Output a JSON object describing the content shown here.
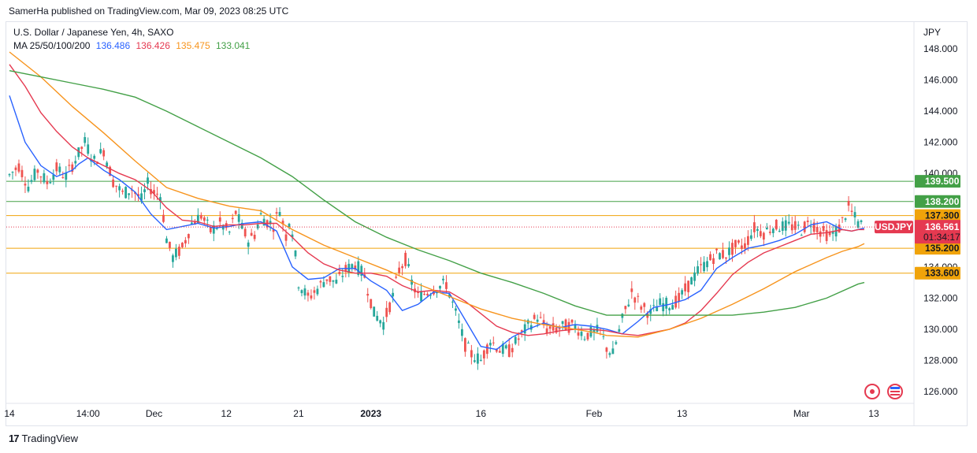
{
  "publisher_line": "SamerHa published on TradingView.com, Mar 09, 2023 08:25 UTC",
  "footer": {
    "brand": "TradingView",
    "mark": "17"
  },
  "chart_data": {
    "type": "line",
    "title": "U.S. Dollar / Japanese Yen, 4h, SAXO",
    "currency": "JPY",
    "symbol": "USDJPY",
    "last_price": "136.561",
    "countdown": "01:34:17",
    "ma_label": "MA 25/50/100/200",
    "ylim": [
      125.0,
      148.5
    ],
    "y_ticks": [
      "148.000",
      "146.000",
      "144.000",
      "142.000",
      "140.000",
      "138.000",
      "136.000",
      "134.000",
      "132.000",
      "130.000",
      "128.000",
      "126.000"
    ],
    "x_ticks": [
      "14",
      "14:00",
      "Dec",
      "12",
      "21",
      "2023",
      "16",
      "Feb",
      "13",
      "Mar",
      "13"
    ],
    "x_tick_index": [
      0,
      25,
      46,
      69,
      92,
      115,
      150,
      186,
      214,
      252,
      275
    ],
    "bar_count": 272,
    "levels": [
      {
        "value": 139.5,
        "label": "139.500",
        "color": "#43a047"
      },
      {
        "value": 138.2,
        "label": "138.200",
        "color": "#43a047"
      },
      {
        "value": 137.3,
        "label": "137.300",
        "color": "#f0a30a"
      },
      {
        "value": 135.2,
        "label": "135.200",
        "color": "#f0a30a"
      },
      {
        "value": 133.6,
        "label": "133.600",
        "color": "#f0a30a"
      }
    ],
    "series": [
      {
        "name": "MA 25",
        "value": "136.486",
        "color": "#2962ff",
        "x": [
          0,
          5,
          10,
          15,
          20,
          22,
          25,
          30,
          35,
          40,
          45,
          50,
          55,
          60,
          65,
          70,
          75,
          80,
          85,
          90,
          95,
          100,
          105,
          110,
          115,
          120,
          125,
          130,
          135,
          140,
          145,
          150,
          155,
          160,
          165,
          170,
          175,
          180,
          185,
          190,
          195,
          200,
          205,
          210,
          215,
          220,
          225,
          230,
          235,
          240,
          245,
          250,
          255,
          260,
          265,
          268,
          270,
          272
        ],
        "y": [
          145.0,
          142.0,
          140.5,
          139.8,
          140.2,
          140.6,
          141.0,
          140.2,
          139.6,
          138.8,
          137.4,
          136.4,
          136.6,
          136.8,
          136.5,
          136.6,
          136.8,
          136.9,
          136.3,
          134.0,
          133.2,
          133.3,
          133.9,
          133.9,
          133.1,
          132.5,
          131.2,
          131.6,
          132.4,
          132.3,
          130.6,
          128.9,
          128.7,
          129.5,
          130.0,
          130.4,
          130.1,
          130.3,
          130.2,
          130.0,
          129.7,
          130.5,
          131.4,
          131.6,
          131.9,
          132.5,
          133.9,
          134.6,
          135.2,
          135.4,
          135.7,
          136.1,
          136.7,
          136.9,
          136.4,
          136.3,
          136.4,
          136.5
        ]
      },
      {
        "name": "MA 50",
        "value": "136.426",
        "color": "#e53950",
        "x": [
          0,
          5,
          10,
          15,
          20,
          25,
          30,
          35,
          40,
          45,
          50,
          55,
          60,
          65,
          70,
          75,
          80,
          85,
          90,
          95,
          100,
          105,
          110,
          115,
          120,
          125,
          130,
          135,
          140,
          145,
          150,
          155,
          160,
          165,
          170,
          175,
          180,
          185,
          190,
          195,
          200,
          205,
          210,
          215,
          220,
          225,
          230,
          235,
          240,
          245,
          250,
          255,
          260,
          265,
          268,
          270,
          272
        ],
        "y": [
          147.0,
          145.6,
          143.9,
          142.7,
          141.7,
          141.0,
          140.5,
          140.0,
          139.6,
          138.9,
          137.8,
          137.0,
          136.9,
          136.6,
          136.7,
          136.7,
          136.8,
          136.8,
          135.9,
          134.9,
          134.2,
          133.8,
          133.6,
          133.6,
          133.4,
          132.8,
          132.4,
          132.5,
          132.4,
          131.8,
          131.0,
          130.2,
          129.8,
          129.6,
          129.7,
          129.9,
          130.0,
          130.0,
          129.9,
          129.7,
          129.6,
          129.8,
          130.0,
          130.4,
          131.2,
          132.3,
          133.5,
          134.3,
          134.9,
          135.3,
          135.7,
          136.1,
          136.2,
          136.4,
          136.3,
          136.4,
          136.4
        ]
      },
      {
        "name": "MA 100",
        "value": "135.475",
        "color": "#f7941d",
        "x": [
          0,
          10,
          20,
          30,
          40,
          50,
          60,
          70,
          80,
          90,
          100,
          110,
          120,
          130,
          140,
          150,
          160,
          170,
          180,
          186,
          190,
          200,
          210,
          220,
          230,
          240,
          250,
          260,
          265,
          270,
          272
        ],
        "y": [
          147.8,
          146.2,
          144.3,
          142.6,
          140.8,
          139.1,
          138.4,
          137.9,
          137.6,
          136.4,
          135.4,
          134.6,
          133.8,
          132.9,
          132.1,
          131.3,
          130.7,
          130.3,
          130.0,
          129.8,
          129.6,
          129.5,
          130.0,
          130.7,
          131.6,
          132.6,
          133.7,
          134.6,
          135.0,
          135.3,
          135.5
        ]
      },
      {
        "name": "MA 200",
        "value": "133.041",
        "color": "#43a047",
        "x": [
          0,
          10,
          20,
          30,
          40,
          50,
          60,
          70,
          80,
          90,
          100,
          110,
          120,
          130,
          140,
          150,
          160,
          170,
          180,
          190,
          200,
          210,
          220,
          230,
          240,
          250,
          260,
          270,
          272
        ],
        "y": [
          146.6,
          146.2,
          145.8,
          145.4,
          144.9,
          144.0,
          143.0,
          142.0,
          141.0,
          139.8,
          138.3,
          136.9,
          135.9,
          135.1,
          134.4,
          133.6,
          133.0,
          132.3,
          131.5,
          130.9,
          130.9,
          130.9,
          130.9,
          130.9,
          131.1,
          131.4,
          132.0,
          132.9,
          133.0
        ]
      }
    ],
    "price_path": {
      "x": [
        0,
        3,
        6,
        9,
        12,
        15,
        18,
        21,
        24,
        27,
        30,
        33,
        36,
        39,
        42,
        44,
        46,
        48,
        50,
        52,
        55,
        58,
        61,
        64,
        67,
        70,
        72,
        74,
        76,
        78,
        80,
        82,
        84,
        86,
        88,
        89,
        90,
        92,
        95,
        98,
        101,
        104,
        107,
        110,
        113,
        116,
        119,
        122,
        124,
        126,
        128,
        130,
        133,
        136,
        139,
        142,
        145,
        147,
        150,
        153,
        156,
        159,
        162,
        165,
        168,
        171,
        174,
        177,
        180,
        183,
        186,
        188,
        190,
        192,
        195,
        198,
        201,
        204,
        207,
        210,
        213,
        216,
        219,
        222,
        225,
        228,
        231,
        234,
        237,
        240,
        243,
        246,
        249,
        252,
        255,
        258,
        261,
        264,
        267,
        270,
        272
      ],
      "y": [
        139.9,
        140.5,
        139.2,
        140.2,
        139.4,
        140.3,
        139.8,
        140.9,
        142.0,
        140.8,
        141.5,
        139.5,
        138.7,
        139.0,
        138.3,
        139.3,
        138.8,
        138.6,
        135.8,
        134.6,
        135.2,
        136.8,
        137.3,
        136.3,
        136.8,
        136.2,
        137.5,
        136.5,
        135.7,
        136.1,
        137.3,
        136.9,
        136.7,
        137.7,
        136.0,
        137.0,
        136.3,
        133.0,
        132.0,
        132.6,
        133.3,
        133.0,
        133.8,
        134.2,
        133.4,
        131.0,
        130.4,
        132.1,
        133.8,
        134.5,
        133.0,
        132.1,
        132.4,
        132.7,
        132.9,
        131.0,
        129.0,
        128.4,
        128.0,
        129.3,
        128.7,
        128.6,
        129.4,
        130.2,
        130.8,
        130.0,
        130.0,
        130.2,
        130.2,
        129.6,
        129.8,
        129.9,
        128.8,
        128.4,
        130.6,
        132.4,
        131.5,
        131.0,
        131.6,
        131.6,
        131.9,
        132.8,
        133.7,
        134.3,
        134.8,
        134.8,
        135.3,
        135.4,
        136.5,
        136.2,
        136.6,
        136.6,
        136.6,
        136.4,
        136.9,
        136.3,
        136.0,
        136.5,
        137.8,
        136.8,
        136.6
      ]
    }
  }
}
